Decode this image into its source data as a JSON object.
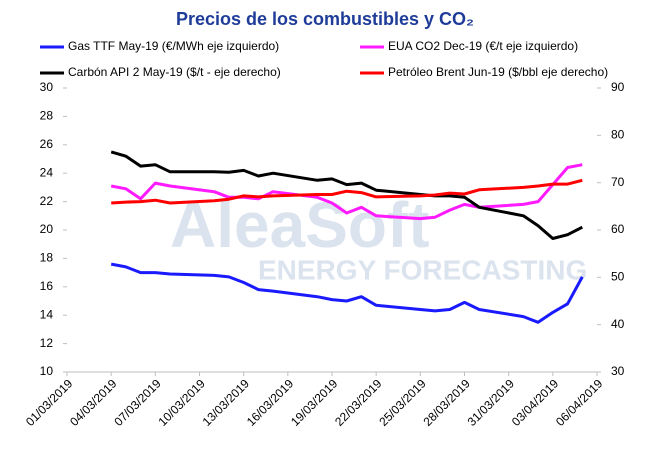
{
  "chart_data": {
    "type": "line",
    "title": "Precios de los combustibles y CO₂",
    "watermark": [
      "AleaSoft",
      "ENERGY FORECASTING"
    ],
    "x": [
      "04/03/2019",
      "05/03/2019",
      "06/03/2019",
      "07/03/2019",
      "08/03/2019",
      "11/03/2019",
      "12/03/2019",
      "13/03/2019",
      "14/03/2019",
      "15/03/2019",
      "18/03/2019",
      "19/03/2019",
      "20/03/2019",
      "21/03/2019",
      "22/03/2019",
      "25/03/2019",
      "26/03/2019",
      "27/03/2019",
      "28/03/2019",
      "29/03/2019",
      "01/04/2019",
      "02/04/2019",
      "03/04/2019",
      "04/04/2019",
      "05/04/2019"
    ],
    "xlim": [
      "01/03/2019",
      "06/04/2019"
    ],
    "xticks": [
      "01/03/2019",
      "04/03/2019",
      "07/03/2019",
      "10/03/2019",
      "13/03/2019",
      "16/03/2019",
      "19/03/2019",
      "22/03/2019",
      "25/03/2019",
      "28/03/2019",
      "31/03/2019",
      "03/04/2019",
      "06/04/2019"
    ],
    "ylim": [
      10,
      30
    ],
    "yticks": [
      10,
      12,
      14,
      16,
      18,
      20,
      22,
      24,
      26,
      28,
      30
    ],
    "y2lim": [
      30,
      90
    ],
    "y2ticks": [
      30,
      40,
      50,
      60,
      70,
      80,
      90
    ],
    "series": [
      {
        "name": "Gas TTF May-19 (€/MWh eje izquierdo)",
        "color": "#1a1aff",
        "axis": "y",
        "values": [
          17.6,
          17.4,
          17.0,
          17.0,
          16.9,
          16.8,
          16.7,
          16.3,
          15.8,
          15.7,
          15.3,
          15.1,
          15.0,
          15.3,
          14.7,
          14.4,
          14.3,
          14.4,
          14.9,
          14.4,
          13.9,
          13.5,
          14.2,
          14.8,
          16.7
        ]
      },
      {
        "name": "EUA CO2 Dec-19 (€/t eje izquierdo)",
        "color": "#ff1aff",
        "axis": "y",
        "values": [
          23.1,
          22.9,
          22.2,
          23.3,
          23.1,
          22.7,
          22.3,
          22.3,
          22.2,
          22.7,
          22.3,
          21.9,
          21.2,
          21.6,
          21.0,
          20.8,
          20.9,
          21.4,
          21.8,
          21.6,
          21.8,
          22.0,
          23.2,
          24.4,
          24.6
        ]
      },
      {
        "name": "Carbón API 2 May-19 ($/t - eje derecho)",
        "color": "#000000",
        "axis": "y2",
        "values": [
          76.5,
          75.6,
          73.5,
          73.8,
          72.3,
          72.3,
          72.2,
          72.6,
          71.4,
          72.0,
          70.5,
          70.8,
          69.6,
          69.9,
          68.4,
          67.5,
          67.2,
          67.2,
          66.9,
          64.8,
          63.0,
          60.9,
          58.2,
          59.0,
          60.6
        ]
      },
      {
        "name": "Petróleo Brent Jun-19 ($/bbl eje derecho)",
        "color": "#ff0000",
        "axis": "y2",
        "values": [
          65.7,
          65.9,
          66.0,
          66.3,
          65.7,
          66.2,
          66.5,
          67.2,
          67.0,
          67.2,
          67.5,
          67.5,
          68.2,
          67.9,
          67.0,
          67.2,
          67.4,
          67.8,
          67.6,
          68.5,
          69.0,
          69.3,
          69.7,
          69.7,
          70.5
        ]
      }
    ]
  }
}
